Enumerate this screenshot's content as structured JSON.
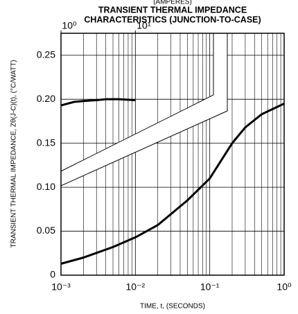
{
  "chart_data": {
    "type": "line",
    "top_label": "(AMPERES)",
    "title": "TRANSIENT THERMAL IMPEDANCE",
    "subtitle": "CHARACTERISTICS (JUNCTION-TO-CASE)",
    "x_label": "TIME, t, (SECONDS)",
    "y_label": "TRANSIENT THERMAL IMPEDANCE, Zθ(J-C)(t), (°C/WATT)",
    "x_log": true,
    "grid": true,
    "xlim": [
      0.001,
      1
    ],
    "xticks": [
      {
        "value": 0.001,
        "label": "10⁻³"
      },
      {
        "value": 0.01,
        "label": "10⁻²"
      },
      {
        "value": 0.1,
        "label": "10⁻¹"
      },
      {
        "value": 1,
        "label": "10⁰"
      }
    ],
    "x2lim": [
      1,
      1000
    ],
    "x2ticks": [
      {
        "value": 1,
        "label": "10⁰"
      },
      {
        "value": 10,
        "label": "10¹"
      }
    ],
    "ylim": [
      0,
      0.275
    ],
    "yticks": [
      0,
      0.05,
      {
        "value": 0.1,
        "label": "0.10"
      },
      0.15,
      {
        "value": 0.2,
        "label": "0.20"
      },
      0.25
    ],
    "series": [
      {
        "color": "#000000",
        "x": [
          0.001,
          0.002,
          0.005,
          0.01,
          0.02,
          0.05,
          0.1,
          0.2,
          0.3,
          0.5,
          1
        ],
        "values": [
          0.013,
          0.02,
          0.032,
          0.043,
          0.057,
          0.085,
          0.11,
          0.15,
          0.168,
          0.183,
          0.195
        ]
      },
      {
        "color": "#000000",
        "axis": "x2",
        "x": [
          1,
          1.5,
          2,
          3,
          4,
          6,
          10
        ],
        "values": [
          0.193,
          0.197,
          0.198,
          0.199,
          0.2,
          0.2,
          0.199
        ]
      }
    ]
  }
}
